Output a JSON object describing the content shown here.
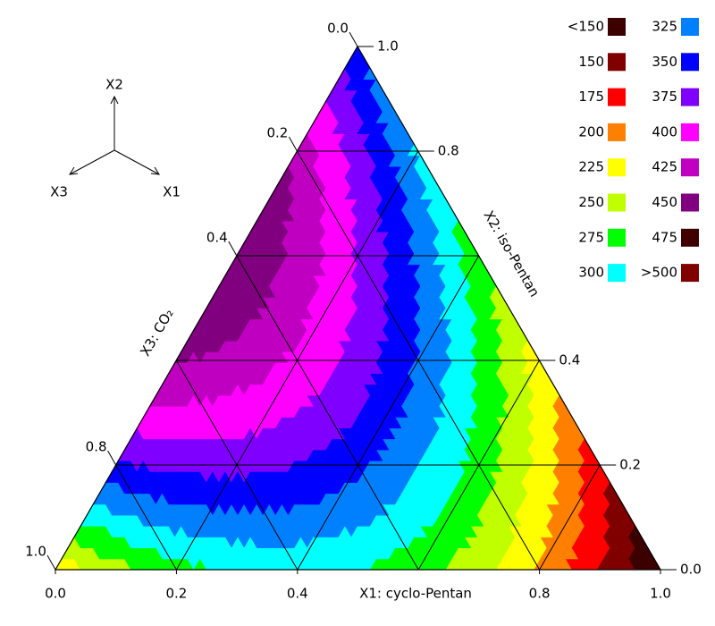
{
  "chart_data": {
    "type": "ternary",
    "axes": [
      {
        "title": "X1: cyclo-Pentan",
        "ticks": [
          {
            "value": 0,
            "label": "0.0"
          },
          0.2,
          0.4,
          0.8,
          {
            "value": 1,
            "label": "1.0"
          }
        ]
      },
      {
        "title": "X2: iso-Pentan",
        "ticks": [
          {
            "value": 1,
            "label": "1.0"
          },
          0.8,
          0.4,
          0.2,
          {
            "value": 0,
            "label": "0.0"
          }
        ]
      },
      {
        "title": "X3: CO₂",
        "ticks": [
          {
            "value": 0,
            "label": "0.0"
          },
          0.2,
          0.4,
          0.8,
          {
            "value": 1,
            "label": "1.0"
          }
        ]
      }
    ],
    "grid_lines": [
      0.2,
      0.4,
      0.6,
      0.8
    ],
    "orientation_labels": [
      "X1",
      "X2",
      "X3"
    ],
    "legend": [
      {
        "label": "<150",
        "color": "#3c0000"
      },
      {
        "value": 150,
        "color": "#800000"
      },
      {
        "value": 175,
        "color": "#ff0000"
      },
      {
        "value": 200,
        "color": "#ff8000"
      },
      {
        "value": 225,
        "color": "#ffff00"
      },
      {
        "value": 250,
        "color": "#c0ff00"
      },
      {
        "value": 275,
        "color": "#00ff00"
      },
      {
        "value": 300,
        "color": "#00ffff"
      },
      {
        "value": 325,
        "color": "#0080ff"
      },
      {
        "value": 350,
        "color": "#0000ff"
      },
      {
        "value": 375,
        "color": "#8000ff"
      },
      {
        "value": 400,
        "color": "#ff00ff"
      },
      {
        "value": 425,
        "color": "#c000c0"
      },
      {
        "value": 450,
        "color": "#800080"
      },
      {
        "value": 475,
        "color": "#400000"
      },
      {
        "value": 500,
        "label": ">500",
        "color": "#800000"
      }
    ]
  }
}
